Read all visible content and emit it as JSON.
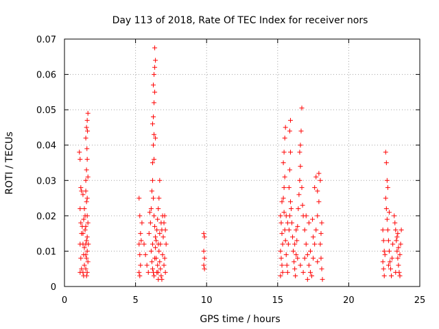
{
  "chart_data": {
    "type": "scatter",
    "title": "Day 113 of 2018, Rate Of TEC Index for receiver nors",
    "xlabel": "GPS time / hours",
    "ylabel": "ROTI / TECUs",
    "xlim": [
      0,
      25
    ],
    "ylim": [
      0,
      0.07
    ],
    "xticks": [
      {
        "value": 0,
        "label": "0"
      },
      {
        "value": 5,
        "label": "5"
      },
      {
        "value": 10,
        "label": "10"
      },
      {
        "value": 15,
        "label": "15"
      },
      {
        "value": 20,
        "label": "20"
      },
      {
        "value": 25,
        "label": "25"
      }
    ],
    "yticks": [
      {
        "value": 0,
        "label": "0"
      },
      {
        "value": 0.01,
        "label": "0.01"
      },
      {
        "value": 0.02,
        "label": "0.02"
      },
      {
        "value": 0.03,
        "label": "0.03"
      },
      {
        "value": 0.04,
        "label": "0.04"
      },
      {
        "value": 0.05,
        "label": "0.05"
      },
      {
        "value": 0.06,
        "label": "0.06"
      },
      {
        "value": 0.07,
        "label": "0.07"
      }
    ],
    "grid": true,
    "marker": "plus",
    "color": "#ff0000",
    "series": [
      {
        "name": "ROTI",
        "points": [
          [
            1.05,
            0.038
          ],
          [
            1.1,
            0.036
          ],
          [
            1.15,
            0.028
          ],
          [
            1.2,
            0.027
          ],
          [
            1.1,
            0.022
          ],
          [
            1.15,
            0.018
          ],
          [
            1.2,
            0.015
          ],
          [
            1.1,
            0.012
          ],
          [
            1.15,
            0.008
          ],
          [
            1.2,
            0.005
          ],
          [
            1.1,
            0.004
          ],
          [
            1.3,
            0.012
          ],
          [
            1.35,
            0.009
          ],
          [
            1.4,
            0.006
          ],
          [
            1.3,
            0.004
          ],
          [
            1.35,
            0.003
          ],
          [
            1.4,
            0.011
          ],
          [
            1.3,
            0.015
          ],
          [
            1.35,
            0.019
          ],
          [
            1.4,
            0.022
          ],
          [
            1.3,
            0.026
          ],
          [
            1.5,
            0.027
          ],
          [
            1.55,
            0.033
          ],
          [
            1.6,
            0.036
          ],
          [
            1.5,
            0.042
          ],
          [
            1.55,
            0.045
          ],
          [
            1.6,
            0.047
          ],
          [
            1.65,
            0.049
          ],
          [
            1.5,
            0.03
          ],
          [
            1.55,
            0.024
          ],
          [
            1.6,
            0.02
          ],
          [
            1.5,
            0.017
          ],
          [
            1.55,
            0.013
          ],
          [
            1.6,
            0.01
          ],
          [
            1.65,
            0.007
          ],
          [
            1.5,
            0.005
          ],
          [
            1.55,
            0.003
          ],
          [
            1.6,
            0.014
          ],
          [
            1.65,
            0.018
          ],
          [
            1.5,
            0.009
          ],
          [
            1.6,
            0.004
          ],
          [
            1.45,
            0.016
          ],
          [
            1.5,
            0.012
          ],
          [
            1.55,
            0.008
          ],
          [
            1.6,
            0.025
          ],
          [
            1.65,
            0.031
          ],
          [
            1.58,
            0.039
          ],
          [
            1.62,
            0.044
          ],
          [
            1.25,
            0.017
          ],
          [
            1.45,
            0.02
          ],
          [
            1.68,
            0.012
          ],
          [
            5.25,
            0.025
          ],
          [
            5.3,
            0.02
          ],
          [
            5.35,
            0.015
          ],
          [
            5.25,
            0.012
          ],
          [
            5.3,
            0.009
          ],
          [
            5.35,
            0.006
          ],
          [
            5.25,
            0.004
          ],
          [
            5.3,
            0.003
          ],
          [
            5.4,
            0.013
          ],
          [
            5.45,
            0.018
          ],
          [
            5.6,
            0.012
          ],
          [
            5.7,
            0.009
          ],
          [
            5.8,
            0.006
          ],
          [
            5.9,
            0.004
          ],
          [
            5.95,
            0.015
          ],
          [
            6.0,
            0.021
          ],
          [
            6.05,
            0.018
          ],
          [
            6.1,
            0.022
          ],
          [
            6.15,
            0.027
          ],
          [
            6.2,
            0.035
          ],
          [
            6.25,
            0.04
          ],
          [
            6.3,
            0.043
          ],
          [
            6.2,
            0.046
          ],
          [
            6.25,
            0.048
          ],
          [
            6.3,
            0.052
          ],
          [
            6.35,
            0.055
          ],
          [
            6.25,
            0.057
          ],
          [
            6.3,
            0.06
          ],
          [
            6.35,
            0.062
          ],
          [
            6.4,
            0.064
          ],
          [
            6.35,
            0.0675
          ],
          [
            6.2,
            0.03
          ],
          [
            6.25,
            0.025
          ],
          [
            6.3,
            0.02
          ],
          [
            6.35,
            0.017
          ],
          [
            6.4,
            0.014
          ],
          [
            6.2,
            0.012
          ],
          [
            6.1,
            0.01
          ],
          [
            6.15,
            0.007
          ],
          [
            6.2,
            0.005
          ],
          [
            6.25,
            0.004
          ],
          [
            6.3,
            0.003
          ],
          [
            6.35,
            0.008
          ],
          [
            6.4,
            0.011
          ],
          [
            6.45,
            0.013
          ],
          [
            6.5,
            0.016
          ],
          [
            6.55,
            0.019
          ],
          [
            6.6,
            0.022
          ],
          [
            6.65,
            0.025
          ],
          [
            6.7,
            0.03
          ],
          [
            6.6,
            0.012
          ],
          [
            6.65,
            0.01
          ],
          [
            6.7,
            0.007
          ],
          [
            6.75,
            0.005
          ],
          [
            6.8,
            0.003
          ],
          [
            6.85,
            0.002
          ],
          [
            6.9,
            0.009
          ],
          [
            6.95,
            0.014
          ],
          [
            7.0,
            0.018
          ],
          [
            7.05,
            0.02
          ],
          [
            7.1,
            0.016
          ],
          [
            7.15,
            0.012
          ],
          [
            7.05,
            0.008
          ],
          [
            6.5,
            0.004
          ],
          [
            6.55,
            0.006
          ],
          [
            6.6,
            0.002
          ],
          [
            6.7,
            0.015
          ],
          [
            6.8,
            0.018
          ],
          [
            6.9,
            0.02
          ],
          [
            6.45,
            0.008
          ],
          [
            6.58,
            0.004
          ],
          [
            6.75,
            0.012
          ],
          [
            6.85,
            0.016
          ],
          [
            7.0,
            0.006
          ],
          [
            7.1,
            0.004
          ],
          [
            6.3,
            0.036
          ],
          [
            6.4,
            0.042
          ],
          [
            9.8,
            0.015
          ],
          [
            9.85,
            0.014
          ],
          [
            9.8,
            0.01
          ],
          [
            9.85,
            0.008
          ],
          [
            9.8,
            0.006
          ],
          [
            9.85,
            0.005
          ],
          [
            15.2,
            0.02
          ],
          [
            15.25,
            0.018
          ],
          [
            15.3,
            0.015
          ],
          [
            15.35,
            0.012
          ],
          [
            15.2,
            0.01
          ],
          [
            15.25,
            0.008
          ],
          [
            15.3,
            0.006
          ],
          [
            15.35,
            0.004
          ],
          [
            15.2,
            0.003
          ],
          [
            15.4,
            0.025
          ],
          [
            15.45,
            0.028
          ],
          [
            15.5,
            0.031
          ],
          [
            15.4,
            0.035
          ],
          [
            15.45,
            0.038
          ],
          [
            15.5,
            0.042
          ],
          [
            15.55,
            0.045
          ],
          [
            15.45,
            0.021
          ],
          [
            15.5,
            0.016
          ],
          [
            15.55,
            0.013
          ],
          [
            15.6,
            0.009
          ],
          [
            15.65,
            0.006
          ],
          [
            15.7,
            0.004
          ],
          [
            15.75,
            0.012
          ],
          [
            15.8,
            0.016
          ],
          [
            15.85,
            0.02
          ],
          [
            15.9,
            0.024
          ],
          [
            15.8,
            0.028
          ],
          [
            15.85,
            0.033
          ],
          [
            15.9,
            0.038
          ],
          [
            15.85,
            0.044
          ],
          [
            15.9,
            0.047
          ],
          [
            16.0,
            0.018
          ],
          [
            16.05,
            0.014
          ],
          [
            16.1,
            0.01
          ],
          [
            16.15,
            0.007
          ],
          [
            16.2,
            0.005
          ],
          [
            16.25,
            0.003
          ],
          [
            16.3,
            0.009
          ],
          [
            16.35,
            0.013
          ],
          [
            16.4,
            0.017
          ],
          [
            16.45,
            0.022
          ],
          [
            16.5,
            0.026
          ],
          [
            16.55,
            0.03
          ],
          [
            16.6,
            0.034
          ],
          [
            16.55,
            0.038
          ],
          [
            16.6,
            0.04
          ],
          [
            16.65,
            0.044
          ],
          [
            16.7,
            0.0505
          ],
          [
            16.7,
            0.028
          ],
          [
            16.75,
            0.023
          ],
          [
            16.8,
            0.02
          ],
          [
            16.9,
            0.016
          ],
          [
            17.0,
            0.012
          ],
          [
            17.1,
            0.009
          ],
          [
            17.2,
            0.006
          ],
          [
            17.3,
            0.004
          ],
          [
            17.4,
            0.003
          ],
          [
            17.5,
            0.008
          ],
          [
            17.6,
            0.012
          ],
          [
            17.7,
            0.016
          ],
          [
            17.8,
            0.02
          ],
          [
            17.9,
            0.024
          ],
          [
            17.6,
            0.028
          ],
          [
            17.7,
            0.031
          ],
          [
            17.8,
            0.027
          ],
          [
            17.9,
            0.032
          ],
          [
            18.0,
            0.03
          ],
          [
            18.0,
            0.012
          ],
          [
            18.05,
            0.008
          ],
          [
            18.1,
            0.005
          ],
          [
            18.15,
            0.002
          ],
          [
            18.1,
            0.018
          ],
          [
            17.0,
            0.02
          ],
          [
            17.2,
            0.018
          ],
          [
            16.9,
            0.008
          ],
          [
            17.3,
            0.01
          ],
          [
            16.2,
            0.012
          ],
          [
            16.3,
            0.016
          ],
          [
            15.6,
            0.02
          ],
          [
            15.7,
            0.018
          ],
          [
            16.4,
            0.008
          ],
          [
            16.6,
            0.006
          ],
          [
            16.8,
            0.004
          ],
          [
            17.1,
            0.002
          ],
          [
            17.5,
            0.014
          ],
          [
            17.8,
            0.007
          ],
          [
            15.3,
            0.024
          ],
          [
            15.95,
            0.022
          ],
          [
            17.45,
            0.019
          ],
          [
            18.05,
            0.015
          ],
          [
            22.4,
            0.016
          ],
          [
            22.45,
            0.013
          ],
          [
            22.5,
            0.01
          ],
          [
            22.4,
            0.007
          ],
          [
            22.45,
            0.005
          ],
          [
            22.5,
            0.003
          ],
          [
            22.6,
            0.038
          ],
          [
            22.65,
            0.035
          ],
          [
            22.7,
            0.03
          ],
          [
            22.75,
            0.028
          ],
          [
            22.6,
            0.025
          ],
          [
            22.65,
            0.022
          ],
          [
            22.7,
            0.019
          ],
          [
            22.75,
            0.016
          ],
          [
            22.8,
            0.013
          ],
          [
            22.85,
            0.01
          ],
          [
            22.9,
            0.007
          ],
          [
            22.95,
            0.005
          ],
          [
            23.0,
            0.003
          ],
          [
            23.1,
            0.012
          ],
          [
            23.2,
            0.02
          ],
          [
            23.25,
            0.018
          ],
          [
            23.3,
            0.016
          ],
          [
            23.35,
            0.013
          ],
          [
            23.4,
            0.01
          ],
          [
            23.45,
            0.008
          ],
          [
            23.5,
            0.006
          ],
          [
            23.55,
            0.004
          ],
          [
            23.6,
            0.003
          ],
          [
            23.65,
            0.012
          ],
          [
            23.7,
            0.016
          ],
          [
            23.4,
            0.014
          ],
          [
            23.5,
            0.011
          ],
          [
            23.6,
            0.009
          ],
          [
            22.55,
            0.009
          ],
          [
            22.8,
            0.006
          ],
          [
            22.85,
            0.021
          ],
          [
            23.05,
            0.008
          ],
          [
            23.3,
            0.004
          ],
          [
            23.45,
            0.015
          ]
        ]
      }
    ]
  }
}
